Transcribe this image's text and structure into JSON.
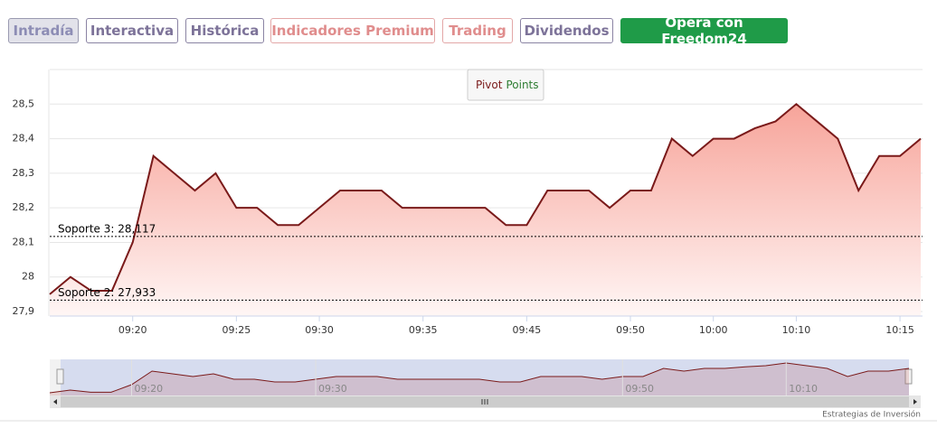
{
  "tabs": [
    "Intradía",
    "Interactiva",
    "Histórica",
    "Indicadores Premium",
    "Trading",
    "Dividendos",
    "Opera con Freedom24"
  ],
  "chart_data": {
    "type": "area",
    "legend": {
      "parts": [
        "Pivot",
        "Points"
      ]
    },
    "categories": [
      null,
      null,
      null,
      null,
      "09:20",
      null,
      null,
      null,
      null,
      "09:25",
      null,
      null,
      null,
      "09:30",
      null,
      null,
      null,
      null,
      "09:35",
      null,
      null,
      null,
      null,
      "09:45",
      null,
      null,
      null,
      null,
      "09:50",
      null,
      null,
      null,
      "10:00",
      null,
      null,
      null,
      "10:10",
      null,
      null,
      null,
      null,
      "10:15",
      null
    ],
    "series": [
      {
        "color": "#7a1a1a",
        "values": [
          27.95,
          28.0,
          27.96,
          27.96,
          28.1,
          28.35,
          28.3,
          28.25,
          28.3,
          28.2,
          28.2,
          28.15,
          28.15,
          28.2,
          28.25,
          28.25,
          28.25,
          28.2,
          28.2,
          28.2,
          28.2,
          28.2,
          28.15,
          28.15,
          28.25,
          28.25,
          28.25,
          28.2,
          28.25,
          28.25,
          28.4,
          28.35,
          28.4,
          28.4,
          28.43,
          28.45,
          28.5,
          28.45,
          28.4,
          28.25,
          28.35,
          28.35,
          28.4
        ]
      }
    ],
    "ylim": [
      27.887,
      28.6
    ],
    "yticks": [
      {
        "value": 27.9,
        "label": "27,9"
      },
      28,
      {
        "value": 28.1,
        "label": "28,1"
      },
      {
        "value": 28.2,
        "label": "28,2"
      },
      {
        "value": 28.3,
        "label": "28,3"
      },
      {
        "value": 28.4,
        "label": "28,4"
      },
      {
        "value": 28.5,
        "label": "28,5"
      }
    ],
    "grid": true,
    "support_lines": [
      {
        "label": "Soporte 3: 28,117",
        "value": 28.117
      },
      {
        "label": "Soporte 2: 27,933",
        "value": 27.933
      }
    ],
    "navigator_ticks": [
      "09:20",
      "09:30",
      "09:50",
      "10:10"
    ]
  },
  "footer": "Estrategias de Inversión"
}
